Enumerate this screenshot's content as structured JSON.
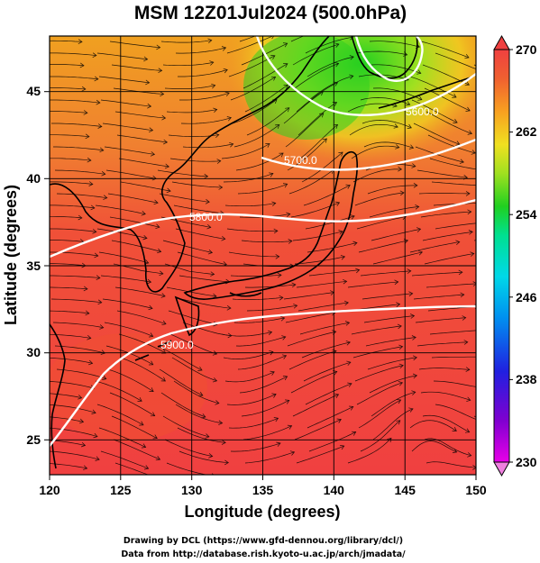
{
  "title": "MSM 12Z01Jul2024 (500.0hPa)",
  "x_axis": {
    "label": "Longitude (degrees)",
    "range": [
      120,
      150
    ],
    "ticks": [
      "120",
      "125",
      "130",
      "135",
      "140",
      "145",
      "150"
    ]
  },
  "y_axis": {
    "label": "Latitude  (degrees)",
    "range": [
      22.4,
      47.6
    ],
    "ticks": [
      "25",
      "30",
      "35",
      "40",
      "45"
    ]
  },
  "colorbar": {
    "min": 230,
    "max": 270,
    "ticks": [
      "230",
      "238",
      "246",
      "254",
      "262",
      "270"
    ],
    "colors": [
      "#e800e8",
      "#8000d0",
      "#2020e0",
      "#0090f0",
      "#00d8e8",
      "#00e090",
      "#20d020",
      "#a0e020",
      "#f0e020",
      "#f8a020",
      "#f06030",
      "#f04040"
    ]
  },
  "contours": [
    {
      "label": "5600.0"
    },
    {
      "label": "5700.0"
    },
    {
      "label": "5800.0"
    },
    {
      "label": "5900.0"
    }
  ],
  "credits": {
    "line1": "Drawing by DCL (https://www.gfd-dennou.org/library/dcl/)",
    "line2": "Data from http://database.rish.kyoto-u.ac.jp/arch/jmadata/"
  }
}
